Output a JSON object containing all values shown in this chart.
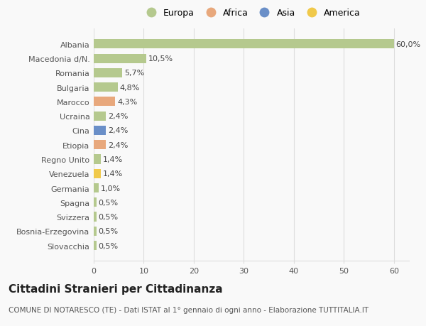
{
  "categories": [
    "Albania",
    "Macedonia d/N.",
    "Romania",
    "Bulgaria",
    "Marocco",
    "Ucraina",
    "Cina",
    "Etiopia",
    "Regno Unito",
    "Venezuela",
    "Germania",
    "Spagna",
    "Svizzera",
    "Bosnia-Erzegovina",
    "Slovacchia"
  ],
  "values": [
    60.0,
    10.5,
    5.7,
    4.8,
    4.3,
    2.4,
    2.4,
    2.4,
    1.4,
    1.4,
    1.0,
    0.5,
    0.5,
    0.5,
    0.5
  ],
  "labels": [
    "60,0%",
    "10,5%",
    "5,7%",
    "4,8%",
    "4,3%",
    "2,4%",
    "2,4%",
    "2,4%",
    "1,4%",
    "1,4%",
    "1,0%",
    "0,5%",
    "0,5%",
    "0,5%",
    "0,5%"
  ],
  "continents": [
    "Europa",
    "Europa",
    "Europa",
    "Europa",
    "Africa",
    "Europa",
    "Asia",
    "Africa",
    "Europa",
    "America",
    "Europa",
    "Europa",
    "Europa",
    "Europa",
    "Europa"
  ],
  "continent_colors": {
    "Europa": "#b5c98e",
    "Africa": "#e8a87c",
    "Asia": "#6a8fc8",
    "America": "#f0c94a"
  },
  "legend_order": [
    "Europa",
    "Africa",
    "Asia",
    "America"
  ],
  "title": "Cittadini Stranieri per Cittadinanza",
  "subtitle": "COMUNE DI NOTARESCO (TE) - Dati ISTAT al 1° gennaio di ogni anno - Elaborazione TUTTITALIA.IT",
  "xlim": [
    0,
    63
  ],
  "xticks": [
    0,
    10,
    20,
    30,
    40,
    50,
    60
  ],
  "background_color": "#f9f9f9",
  "bar_height": 0.65,
  "title_fontsize": 11,
  "subtitle_fontsize": 7.5,
  "label_fontsize": 8,
  "tick_fontsize": 8,
  "legend_fontsize": 9,
  "grid_color": "#dddddd"
}
